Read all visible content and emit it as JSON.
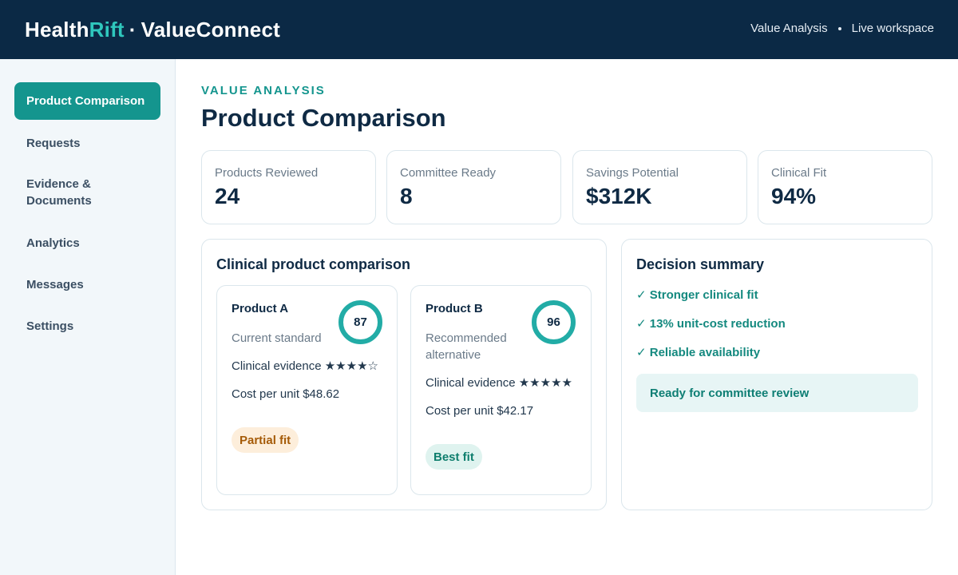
{
  "header": {
    "brand_part1": "Health",
    "brand_part2": "Rift",
    "brand_separator": "·",
    "brand_part3": "ValueConnect",
    "nav_left": "Value Analysis",
    "nav_right": "Live workspace"
  },
  "sidebar": {
    "items": [
      {
        "label": "Product Comparison",
        "active": true
      },
      {
        "label": "Requests"
      },
      {
        "label": "Evidence & Documents"
      },
      {
        "label": "Analytics"
      },
      {
        "label": "Messages"
      },
      {
        "label": "Settings"
      }
    ]
  },
  "main": {
    "eyebrow": "VALUE ANALYSIS",
    "title": "Product Comparison"
  },
  "stats": [
    {
      "label": "Products Reviewed",
      "value": "24"
    },
    {
      "label": "Committee Ready",
      "value": "8"
    },
    {
      "label": "Savings Potential",
      "value": "$312K"
    },
    {
      "label": "Clinical Fit",
      "value": "94%"
    }
  ],
  "comparison": {
    "title": "Clinical product comparison",
    "products": [
      {
        "name": "Product A",
        "subtitle": "Current standard",
        "score": "87",
        "evidence": "Clinical evidence ★★★★☆",
        "cost": "Cost per unit $48.62",
        "fit": "Partial fit"
      },
      {
        "name": "Product B",
        "subtitle": "Recommended alternative",
        "score": "96",
        "evidence": "Clinical evidence ★★★★★",
        "cost": "Cost per unit $42.17",
        "fit": "Best fit"
      }
    ]
  },
  "summary": {
    "title": "Decision summary",
    "points": [
      "✓ Stronger clinical fit",
      "✓ 13% unit-cost reduction",
      "✓ Reliable availability"
    ],
    "status": "Ready for committee review"
  },
  "colors": {
    "header_bg": "#0b2945",
    "accent": "#14958e",
    "brand_accent": "#2fc7bd",
    "ring": "#22aca6",
    "partial_bg": "#fdeedb",
    "partial_text": "#a55b08",
    "best_bg": "#dff3ef",
    "best_text": "#0e7e6d"
  }
}
